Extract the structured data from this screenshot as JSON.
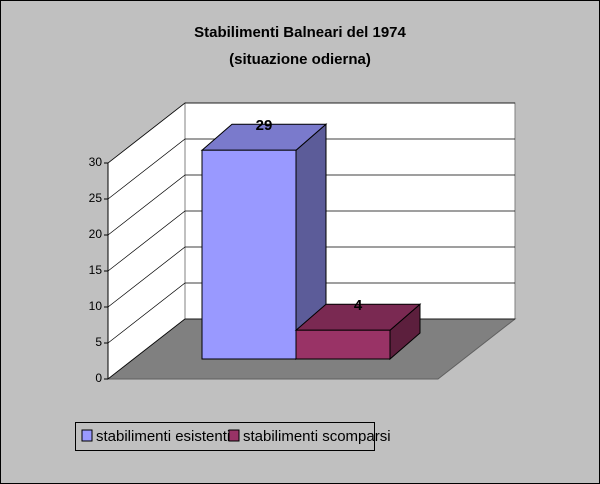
{
  "chart_data": {
    "type": "bar3d",
    "title": "Stabilimenti Balneari del 1974",
    "subtitle": "(situazione odierna)",
    "categories": [
      null
    ],
    "series": [
      {
        "name": "stabilimenti esistenti",
        "color": "#9999ff",
        "values": [
          29
        ]
      },
      {
        "name": "stabilimenti scomparsi",
        "color": "#993366",
        "values": [
          4
        ]
      }
    ],
    "ylim": [
      0,
      30
    ],
    "yticks": [
      0,
      5,
      10,
      15,
      20,
      25,
      30
    ],
    "grid": true,
    "legend": "bottom"
  }
}
